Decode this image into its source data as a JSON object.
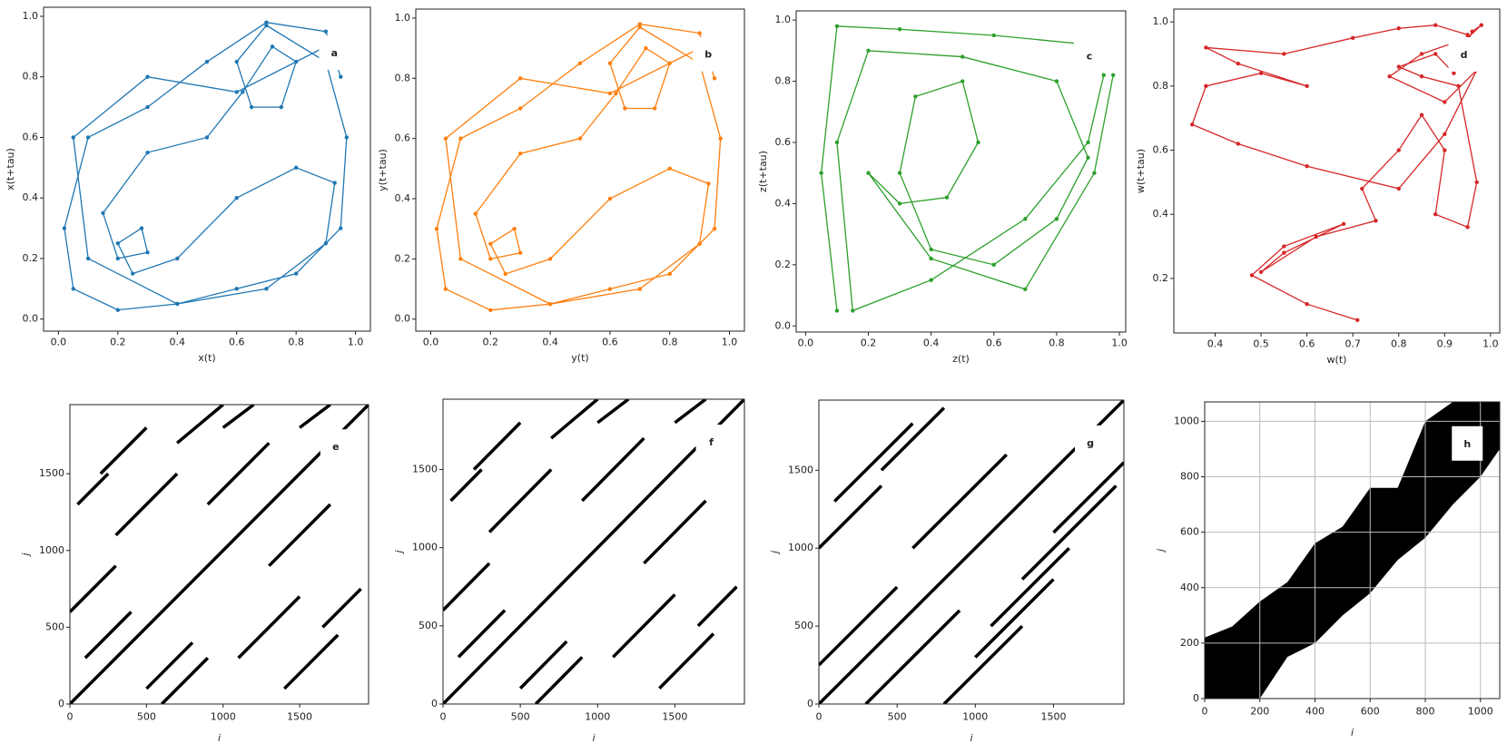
{
  "chart_data": [
    {
      "type": "line",
      "label": "a",
      "color": "#1f77b4",
      "markers": true,
      "xlabel": "x(t)",
      "ylabel": "x(t+tau)",
      "x": [
        0.95,
        0.9,
        0.7,
        0.5,
        0.3,
        0.1,
        0.02,
        0.05,
        0.2,
        0.4,
        0.6,
        0.8,
        0.95,
        0.97,
        0.9,
        0.7,
        0.6,
        0.65,
        0.75,
        0.8,
        0.72,
        0.62,
        0.5,
        0.3,
        0.15,
        0.2,
        0.3,
        0.28,
        0.2,
        0.25,
        0.4,
        0.6,
        0.8,
        0.93,
        0.9,
        0.7,
        0.4,
        0.1,
        0.05,
        0.3,
        0.6,
        0.9
      ],
      "values": [
        0.8,
        0.95,
        0.98,
        0.85,
        0.7,
        0.6,
        0.3,
        0.1,
        0.03,
        0.05,
        0.1,
        0.15,
        0.3,
        0.6,
        0.85,
        0.97,
        0.85,
        0.7,
        0.7,
        0.85,
        0.9,
        0.75,
        0.6,
        0.55,
        0.35,
        0.2,
        0.22,
        0.3,
        0.25,
        0.15,
        0.2,
        0.4,
        0.5,
        0.45,
        0.25,
        0.1,
        0.05,
        0.2,
        0.6,
        0.8,
        0.75,
        0.9
      ],
      "xlim": [
        -0.05,
        1.05
      ],
      "ylim": [
        -0.04,
        1.03
      ],
      "xticks": [
        {
          "value": 0,
          "label": "0.0"
        },
        0.2,
        0.4,
        0.6,
        0.8,
        {
          "value": 1,
          "label": "1.0"
        }
      ],
      "yticks": [
        {
          "value": 0,
          "label": "0.0"
        },
        0.2,
        0.4,
        0.6,
        0.8,
        {
          "value": 1,
          "label": "1.0"
        }
      ]
    },
    {
      "type": "line",
      "label": "b",
      "color": "#ff7f0e",
      "markers": true,
      "xlabel": "y(t)",
      "ylabel": "y(t+tau)",
      "x": [
        0.95,
        0.9,
        0.7,
        0.5,
        0.3,
        0.1,
        0.02,
        0.05,
        0.2,
        0.4,
        0.6,
        0.8,
        0.95,
        0.97,
        0.9,
        0.7,
        0.6,
        0.65,
        0.75,
        0.8,
        0.72,
        0.62,
        0.5,
        0.3,
        0.15,
        0.2,
        0.3,
        0.28,
        0.2,
        0.25,
        0.4,
        0.6,
        0.8,
        0.93,
        0.9,
        0.7,
        0.4,
        0.1,
        0.05,
        0.3,
        0.6,
        0.9
      ],
      "values": [
        0.8,
        0.95,
        0.98,
        0.85,
        0.7,
        0.6,
        0.3,
        0.1,
        0.03,
        0.05,
        0.1,
        0.15,
        0.3,
        0.6,
        0.85,
        0.97,
        0.85,
        0.7,
        0.7,
        0.85,
        0.9,
        0.75,
        0.6,
        0.55,
        0.35,
        0.2,
        0.22,
        0.3,
        0.25,
        0.15,
        0.2,
        0.4,
        0.5,
        0.45,
        0.25,
        0.1,
        0.05,
        0.2,
        0.6,
        0.8,
        0.75,
        0.9
      ],
      "xlim": [
        -0.05,
        1.05
      ],
      "ylim": [
        -0.04,
        1.03
      ],
      "xticks": [
        {
          "value": 0,
          "label": "0.0"
        },
        0.2,
        0.4,
        0.6,
        0.8,
        {
          "value": 1,
          "label": "1.0"
        }
      ],
      "yticks": [
        {
          "value": 0,
          "label": "0.0"
        },
        0.2,
        0.4,
        0.6,
        0.8,
        {
          "value": 1,
          "label": "1.0"
        }
      ]
    },
    {
      "type": "line",
      "label": "c",
      "color": "#2ca02c",
      "markers": true,
      "xlabel": "z(t)",
      "ylabel": "z(t+tau)",
      "x": [
        0.1,
        0.05,
        0.1,
        0.3,
        0.6,
        0.9,
        0.95,
        0.9,
        0.7,
        0.4,
        0.15,
        0.1,
        0.2,
        0.5,
        0.8,
        0.9,
        0.8,
        0.6,
        0.4,
        0.3,
        0.35,
        0.5,
        0.55,
        0.45,
        0.3,
        0.2,
        0.4,
        0.7,
        0.92,
        0.98
      ],
      "values": [
        0.05,
        0.5,
        0.98,
        0.97,
        0.95,
        0.92,
        0.82,
        0.6,
        0.35,
        0.15,
        0.05,
        0.6,
        0.9,
        0.88,
        0.8,
        0.55,
        0.35,
        0.2,
        0.25,
        0.5,
        0.75,
        0.8,
        0.6,
        0.42,
        0.4,
        0.5,
        0.22,
        0.12,
        0.5,
        0.82
      ],
      "xlim": [
        -0.03,
        1.02
      ],
      "ylim": [
        -0.02,
        1.03
      ],
      "xticks": [
        {
          "value": 0,
          "label": "0.0"
        },
        0.2,
        0.4,
        0.6,
        0.8,
        {
          "value": 1,
          "label": "1.0"
        }
      ],
      "yticks": [
        {
          "value": 0,
          "label": "0.0"
        },
        0.2,
        0.4,
        0.6,
        0.8,
        {
          "value": 1,
          "label": "1.0"
        }
      ]
    },
    {
      "type": "line",
      "label": "d",
      "color": "#d62728",
      "markers": true,
      "xlabel": "w(t)",
      "ylabel": "w(t+tau)",
      "x": [
        0.71,
        0.6,
        0.48,
        0.55,
        0.68,
        0.55,
        0.5,
        0.62,
        0.75,
        0.72,
        0.8,
        0.85,
        0.9,
        0.88,
        0.95,
        0.97,
        0.93,
        0.85,
        0.8,
        0.88,
        0.92,
        0.96,
        0.98,
        0.95,
        0.85,
        0.78,
        0.9,
        0.97,
        0.9,
        0.8,
        0.6,
        0.45,
        0.35,
        0.38,
        0.5,
        0.6,
        0.45,
        0.38,
        0.55,
        0.7,
        0.8,
        0.88,
        0.95
      ],
      "values": [
        0.07,
        0.12,
        0.21,
        0.3,
        0.37,
        0.28,
        0.22,
        0.33,
        0.38,
        0.48,
        0.6,
        0.71,
        0.6,
        0.4,
        0.36,
        0.5,
        0.8,
        0.83,
        0.86,
        0.9,
        0.84,
        0.97,
        0.99,
        0.95,
        0.9,
        0.83,
        0.75,
        0.85,
        0.65,
        0.48,
        0.55,
        0.62,
        0.68,
        0.8,
        0.84,
        0.8,
        0.87,
        0.92,
        0.9,
        0.95,
        0.98,
        0.99,
        0.96
      ],
      "xlim": [
        0.31,
        1.02
      ],
      "ylim": [
        0.03,
        1.04
      ],
      "xticks": [
        0.4,
        0.5,
        0.6,
        0.7,
        0.8,
        0.9,
        {
          "value": 1,
          "label": "1.0"
        }
      ],
      "yticks": [
        0.2,
        0.4,
        0.6,
        0.8,
        {
          "value": 1,
          "label": "1.0"
        }
      ]
    },
    {
      "type": "line",
      "label": "e",
      "color": "#000000",
      "markers": false,
      "xlabel": "i",
      "ylabel": "j",
      "x": [
        0,
        1950,
        null,
        100,
        400,
        null,
        500,
        800,
        null,
        300,
        700,
        null,
        1100,
        1500,
        null,
        900,
        1300,
        null,
        1300,
        1700,
        null,
        0,
        300,
        null,
        600,
        900,
        null,
        1500,
        1700,
        null,
        200,
        500,
        null,
        700,
        1000,
        null,
        1400,
        1750,
        null,
        1000,
        1200,
        null,
        50,
        250,
        null,
        1650,
        1900
      ],
      "values": [
        0,
        1950,
        null,
        300,
        600,
        null,
        100,
        400,
        null,
        1100,
        1500,
        null,
        300,
        700,
        null,
        1300,
        1700,
        null,
        900,
        1300,
        null,
        600,
        900,
        null,
        0,
        300,
        null,
        1800,
        1950,
        null,
        1500,
        1800,
        null,
        1700,
        1950,
        null,
        100,
        450,
        null,
        1800,
        1950,
        null,
        1300,
        1500,
        null,
        500,
        750
      ],
      "xlim": [
        0,
        1950
      ],
      "ylim": [
        0,
        1950
      ],
      "xticks": [
        0,
        500,
        1000,
        1500
      ],
      "yticks": [
        0,
        500,
        1000,
        1500
      ]
    },
    {
      "type": "line",
      "label": "f",
      "color": "#000000",
      "markers": false,
      "xlabel": "i",
      "ylabel": "j",
      "x": [
        0,
        1950,
        null,
        100,
        400,
        null,
        500,
        800,
        null,
        300,
        700,
        null,
        1100,
        1500,
        null,
        900,
        1300,
        null,
        1300,
        1700,
        null,
        0,
        300,
        null,
        600,
        900,
        null,
        1500,
        1700,
        null,
        200,
        500,
        null,
        700,
        1000,
        null,
        1400,
        1750,
        null,
        1000,
        1200,
        null,
        50,
        250,
        null,
        1650,
        1900
      ],
      "values": [
        0,
        1950,
        null,
        300,
        600,
        null,
        100,
        400,
        null,
        1100,
        1500,
        null,
        300,
        700,
        null,
        1300,
        1700,
        null,
        900,
        1300,
        null,
        600,
        900,
        null,
        0,
        300,
        null,
        1800,
        1950,
        null,
        1500,
        1800,
        null,
        1700,
        1950,
        null,
        100,
        450,
        null,
        1800,
        1950,
        null,
        1300,
        1500,
        null,
        500,
        750
      ],
      "xlim": [
        0,
        1950
      ],
      "ylim": [
        0,
        1950
      ],
      "xticks": [
        0,
        500,
        1000,
        1500
      ],
      "yticks": [
        0,
        500,
        1000,
        1500
      ]
    },
    {
      "type": "line",
      "label": "g",
      "color": "#000000",
      "markers": false,
      "xlabel": "i",
      "ylabel": "j",
      "x": [
        0,
        1950,
        null,
        0,
        500,
        null,
        300,
        900,
        null,
        600,
        1200,
        null,
        1000,
        1500,
        null,
        1300,
        1900,
        null,
        100,
        600,
        null,
        800,
        1300,
        null,
        0,
        400,
        null,
        1500,
        1950,
        null,
        400,
        800,
        null,
        1100,
        1600
      ],
      "values": [
        0,
        1950,
        null,
        250,
        750,
        null,
        0,
        600,
        null,
        1000,
        1600,
        null,
        300,
        800,
        null,
        800,
        1400,
        null,
        1300,
        1800,
        null,
        0,
        500,
        null,
        1000,
        1400,
        null,
        1100,
        1550,
        null,
        1500,
        1900,
        null,
        500,
        1000
      ],
      "xlim": [
        0,
        1950
      ],
      "ylim": [
        0,
        1950
      ],
      "xticks": [
        0,
        500,
        1000,
        1500
      ],
      "yticks": [
        0,
        500,
        1000,
        1500
      ]
    },
    {
      "type": "band",
      "label": "h",
      "color": "#000000",
      "grid": true,
      "xlabel": "i",
      "ylabel": "j",
      "x": [
        0,
        100,
        200,
        300,
        400,
        500,
        600,
        700,
        800,
        900,
        1000,
        1070
      ],
      "upper": [
        220,
        260,
        350,
        420,
        560,
        620,
        760,
        760,
        1000,
        1070,
        1070,
        1070
      ],
      "lower": [
        0,
        0,
        0,
        150,
        200,
        300,
        380,
        500,
        580,
        700,
        800,
        900
      ],
      "xlim": [
        0,
        1070
      ],
      "ylim": [
        0,
        1070
      ],
      "xticks": [
        0,
        200,
        400,
        600,
        800,
        1000
      ],
      "yticks": [
        0,
        200,
        400,
        600,
        800,
        1000
      ]
    }
  ]
}
